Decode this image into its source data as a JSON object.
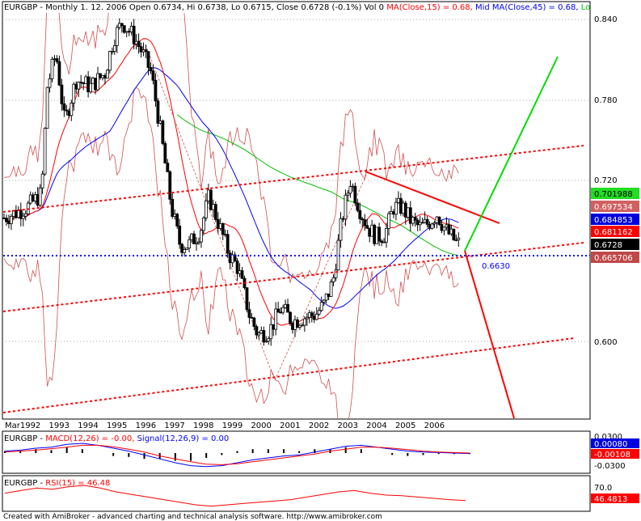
{
  "header": {
    "symbol": "EURGBP",
    "info": " - Monthly 1. 12. 2006 Open 0.6734, Hi 0.6738, Lo 0.6715, Close 0.6728 (-0.1%) Vol 0 ",
    "ma15_label": "MA(Close,15) = 0.68, ",
    "mid_label": "Mid MA(Close,45) = 0.68, ",
    "tail": "Lo"
  },
  "colors": {
    "candle_up": "#ffffff",
    "candle_down": "#000000",
    "ma15": "#ff0000",
    "ma45": "#0000ff",
    "ma_long": "#00c000",
    "bands": "#d05050",
    "channel": "#ff0000",
    "level": "#0000ff",
    "projection_up": "#00dd00",
    "projection_down": "#ff0000",
    "macd": "#0000ff",
    "signal": "#ff0000",
    "rsi": "#ff0000"
  },
  "chart_data": {
    "type": "candlestick",
    "x_axis_labels": [
      "Mar",
      "1992",
      "1993",
      "1994",
      "1995",
      "1996",
      "1997",
      "1998",
      "1999",
      "2000",
      "2001",
      "2002",
      "2003",
      "2004",
      "2005",
      "2006"
    ],
    "y_ticks": [
      "0.840",
      "0.780",
      "0.720",
      "0.600"
    ],
    "ylim": [
      0.565,
      0.845
    ],
    "ohlc_keypoints": [
      {
        "t": 1991.2,
        "v": 0.692
      },
      {
        "t": 1992.0,
        "v": 0.7
      },
      {
        "t": 1992.5,
        "v": 0.71
      },
      {
        "t": 1992.7,
        "v": 0.79
      },
      {
        "t": 1993.0,
        "v": 0.815
      },
      {
        "t": 1993.3,
        "v": 0.763
      },
      {
        "t": 1993.7,
        "v": 0.795
      },
      {
        "t": 1994.2,
        "v": 0.79
      },
      {
        "t": 1994.7,
        "v": 0.8
      },
      {
        "t": 1995.0,
        "v": 0.826
      },
      {
        "t": 1995.3,
        "v": 0.838
      },
      {
        "t": 1995.7,
        "v": 0.827
      },
      {
        "t": 1996.0,
        "v": 0.815
      },
      {
        "t": 1996.3,
        "v": 0.8
      },
      {
        "t": 1996.6,
        "v": 0.76
      },
      {
        "t": 1997.0,
        "v": 0.7
      },
      {
        "t": 1997.3,
        "v": 0.672
      },
      {
        "t": 1997.6,
        "v": 0.672
      },
      {
        "t": 1998.0,
        "v": 0.682
      },
      {
        "t": 1998.3,
        "v": 0.708
      },
      {
        "t": 1998.6,
        "v": 0.69
      },
      {
        "t": 1999.0,
        "v": 0.665
      },
      {
        "t": 1999.3,
        "v": 0.655
      },
      {
        "t": 1999.7,
        "v": 0.62
      },
      {
        "t": 2000.0,
        "v": 0.605
      },
      {
        "t": 2000.4,
        "v": 0.608
      },
      {
        "t": 2000.8,
        "v": 0.625
      },
      {
        "t": 2001.2,
        "v": 0.615
      },
      {
        "t": 2001.6,
        "v": 0.618
      },
      {
        "t": 2002.0,
        "v": 0.62
      },
      {
        "t": 2002.3,
        "v": 0.628
      },
      {
        "t": 2002.6,
        "v": 0.645
      },
      {
        "t": 2002.9,
        "v": 0.69
      },
      {
        "t": 2003.2,
        "v": 0.72
      },
      {
        "t": 2003.5,
        "v": 0.7
      },
      {
        "t": 2003.8,
        "v": 0.685
      },
      {
        "t": 2004.1,
        "v": 0.678
      },
      {
        "t": 2004.4,
        "v": 0.68
      },
      {
        "t": 2004.7,
        "v": 0.7
      },
      {
        "t": 2005.0,
        "v": 0.7
      },
      {
        "t": 2005.3,
        "v": 0.69
      },
      {
        "t": 2005.6,
        "v": 0.685
      },
      {
        "t": 2005.9,
        "v": 0.688
      },
      {
        "t": 2006.2,
        "v": 0.695
      },
      {
        "t": 2006.5,
        "v": 0.683
      },
      {
        "t": 2006.9,
        "v": 0.673
      }
    ],
    "indicators": {
      "ma15": "MA(Close,15) = 0.68",
      "ma45": "Mid MA(Close,45) = 0.68"
    },
    "price_tags": [
      {
        "value": "0.701988",
        "bg": "#22dd22",
        "fg": "#000000"
      },
      {
        "value": "0.697534",
        "bg": "#d06060",
        "fg": "#ffffff"
      },
      {
        "value": "0.684853",
        "bg": "#0000e0",
        "fg": "#ffffff"
      },
      {
        "value": "0.681162",
        "bg": "#ff0000",
        "fg": "#ffffff"
      },
      {
        "value": "0.6728",
        "bg": "#000000",
        "fg": "#ffffff"
      },
      {
        "value": "0.665706",
        "bg": "#c04848",
        "fg": "#ffffff"
      }
    ],
    "level_line": {
      "value": 0.663,
      "label": "0.6630"
    },
    "macd": {
      "label": "MACD(12,26) = -0.00, ",
      "signal_label": "Signal(12,26,9) = 0.00",
      "tags": [
        {
          "value": "0.0300",
          "bg": "#ffffff",
          "fg": "#000000"
        },
        {
          "value": "0.00080",
          "bg": "#0000e0",
          "fg": "#ffffff"
        },
        {
          "value": "-0.00108",
          "bg": "#ff0000",
          "fg": "#ffffff"
        },
        {
          "value": "-0.0300",
          "bg": "#ffffff",
          "fg": "#000000"
        }
      ],
      "macd_values": [
        0.004,
        0.006,
        0.01,
        0.012,
        0.018,
        0.02,
        0.016,
        0.01,
        0.004,
        -0.004,
        -0.012,
        -0.02,
        -0.026,
        -0.028,
        -0.026,
        -0.02,
        -0.014,
        -0.01,
        -0.006,
        -0.004,
        0.002,
        0.008,
        0.014,
        0.016,
        0.012,
        0.008,
        0.004,
        0.002,
        0.001,
        0.0,
        -0.001
      ],
      "signal_values": [
        0.002,
        0.004,
        0.006,
        0.009,
        0.012,
        0.016,
        0.016,
        0.013,
        0.008,
        0.002,
        -0.006,
        -0.012,
        -0.018,
        -0.023,
        -0.024,
        -0.022,
        -0.018,
        -0.014,
        -0.01,
        -0.006,
        -0.002,
        0.004,
        0.008,
        0.012,
        0.012,
        0.01,
        0.007,
        0.004,
        0.002,
        0.001,
        0.0
      ]
    },
    "rsi": {
      "label": "RSI(15) = 46.48",
      "tags": [
        {
          "value": "70.0",
          "bg": "#ffffff",
          "fg": "#000000"
        },
        {
          "value": "46.4813",
          "bg": "#ff0000",
          "fg": "#ffffff"
        }
      ],
      "values": [
        58,
        62,
        66,
        64,
        68,
        70,
        66,
        60,
        56,
        52,
        48,
        44,
        40,
        38,
        40,
        42,
        44,
        46,
        48,
        52,
        56,
        60,
        62,
        58,
        55,
        54,
        52,
        50,
        48,
        46.48
      ]
    }
  },
  "footer": "Created with AmiBroker - advanced charting and technical analysis software. http://www.amibroker.com"
}
